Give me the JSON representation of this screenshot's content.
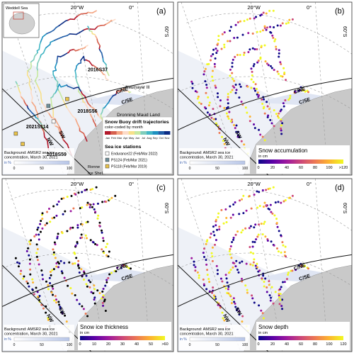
{
  "panels": [
    {
      "id": "a",
      "letter": "(a)",
      "lon_labels": [
        "20°W",
        "0°"
      ],
      "lat_label": "60°S",
      "inset_label": "Weddell Sea",
      "region_labels": [
        "C/NE",
        "C/SE",
        "NW",
        "SW"
      ],
      "place_labels": [
        "Neumayer III",
        "Dronning Maud Land",
        "Ronne Ice Shelf"
      ],
      "buoy_labels": [
        "2016S37",
        "2018S56",
        "2021S114",
        "2018S59"
      ],
      "bg_note": [
        "Background: AMSR2 sea ice",
        "concentration, March 30, 2021"
      ],
      "sic_unit": "in %",
      "sic_ticks": [
        "0",
        "50",
        "100"
      ],
      "legend": {
        "title": "Snow Buoy drift trajectories",
        "subtitle": "color-coded by month",
        "months": [
          "Jan",
          "Feb",
          "Mar",
          "Apr",
          "May",
          "Jun",
          "Jul",
          "Aug",
          "Sep",
          "Oct",
          "Nov"
        ],
        "stations_title": "Sea ice stations",
        "stations": [
          {
            "label": "Endurance22 (Feb/Mar 2022)",
            "color": "#ffffff"
          },
          {
            "label": "PS124 (Feb/Mar 2021)",
            "color": "#6e8f9a"
          },
          {
            "label": "PS118 (Feb/Mar 2019)",
            "color": "#e8c24a"
          }
        ]
      }
    },
    {
      "id": "b",
      "letter": "(b)",
      "lon_labels": [
        "20°W",
        "0°"
      ],
      "lat_label": "60°S",
      "region_labels": [
        "C/NE",
        "C/SE",
        "NW",
        "SW"
      ],
      "bg_note": [
        "Background: AMSR2 sea ice",
        "concentration, March 30, 2021"
      ],
      "sic_unit": "in %",
      "sic_ticks": [
        "0",
        "50",
        "100"
      ],
      "colorbar": {
        "title": "Snow accumulation",
        "unit": "in cm",
        "ticks": [
          "0",
          "20",
          "40",
          "60",
          "80",
          "100",
          ">120"
        ]
      }
    },
    {
      "id": "c",
      "letter": "(c)",
      "lon_labels": [
        "20°W",
        "0°"
      ],
      "lat_label": "60°S",
      "region_labels": [
        "C/NE",
        "C/SE",
        "NW",
        "SW"
      ],
      "bg_note": [
        "Background: AMSR2 sea ice",
        "concentration, March 30, 2021"
      ],
      "sic_unit": "in %",
      "sic_ticks": [
        "0",
        "50",
        "100"
      ],
      "colorbar": {
        "title": "Snow ice thickness",
        "unit": "in cm",
        "ticks": [
          "0",
          "10",
          "20",
          "30",
          "40",
          "50",
          ">60"
        ]
      }
    },
    {
      "id": "d",
      "letter": "(d)",
      "lon_labels": [
        "20°W",
        "0°"
      ],
      "lat_label": "60°S",
      "region_labels": [
        "C/NE",
        "C/SE",
        "NW",
        "SW"
      ],
      "bg_note": [
        "Background: AMSR2 sea ice",
        "concentration, March 30, 2021"
      ],
      "sic_unit": "in %",
      "sic_ticks": [
        "0",
        "50",
        "100"
      ],
      "colorbar": {
        "title": "Snow depth",
        "unit": "in cm",
        "ticks": [
          "0",
          "20",
          "40",
          "60",
          "80",
          "100",
          "120"
        ]
      }
    }
  ],
  "colors": {
    "ocean": "#ffffff",
    "sea_ice": "#eef1f7",
    "land": "#c9c9c9",
    "grid": "#9a9a9a",
    "boundary": "#111111",
    "month_ramp": [
      "#b2182b",
      "#d6604d",
      "#f4a582",
      "#fddbc7",
      "#f7e08a",
      "#c7e9a0",
      "#7fcdbb",
      "#41b6c4",
      "#1d91c0",
      "#225ea8",
      "#0c2c84"
    ],
    "plasma_ramp": [
      "#0d0887",
      "#5c01a6",
      "#9c179e",
      "#cc4778",
      "#ed7953",
      "#fdb42f",
      "#f0f921"
    ]
  }
}
